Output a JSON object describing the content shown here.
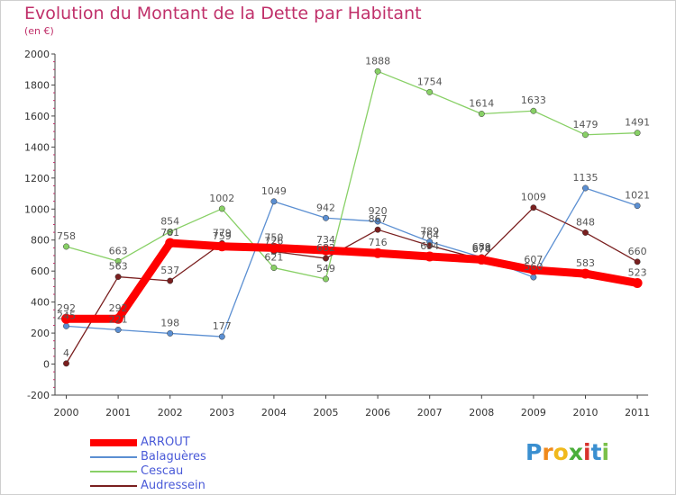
{
  "title": "Evolution du Montant de la Dette par Habitant",
  "unit_label": "(en €)",
  "logo_text": "Proxiti",
  "chart_data": {
    "type": "line",
    "x": [
      "2000",
      "2001",
      "2002",
      "2003",
      "2004",
      "2005",
      "2006",
      "2007",
      "2008",
      "2009",
      "2010",
      "2011"
    ],
    "ylim": [
      -200,
      2000
    ],
    "yticks": [
      -200,
      0,
      200,
      400,
      600,
      800,
      1000,
      1200,
      1400,
      1600,
      1800,
      2000
    ],
    "grid": false,
    "legend_position": "bottom-left",
    "series": [
      {
        "name": "ARROUT",
        "color": "#ff0000",
        "values": [
          292,
          292,
          781,
          759,
          750,
          734,
          716,
          694,
          674,
          607,
          583,
          523
        ]
      },
      {
        "name": "Balaguères",
        "color": "#5b8fd2",
        "values": [
          245,
          221,
          198,
          177,
          1049,
          942,
          920,
          789,
          689,
          560,
          1135,
          1021
        ]
      },
      {
        "name": "Cescau",
        "color": "#88d066",
        "values": [
          758,
          663,
          854,
          1002,
          621,
          549,
          1888,
          1754,
          1614,
          1633,
          1479,
          1491
        ]
      },
      {
        "name": "Audressein",
        "color": "#7a1f1f",
        "values": [
          4,
          563,
          537,
          779,
          726,
          682,
          867,
          764,
          676,
          1009,
          848,
          660
        ]
      }
    ]
  }
}
